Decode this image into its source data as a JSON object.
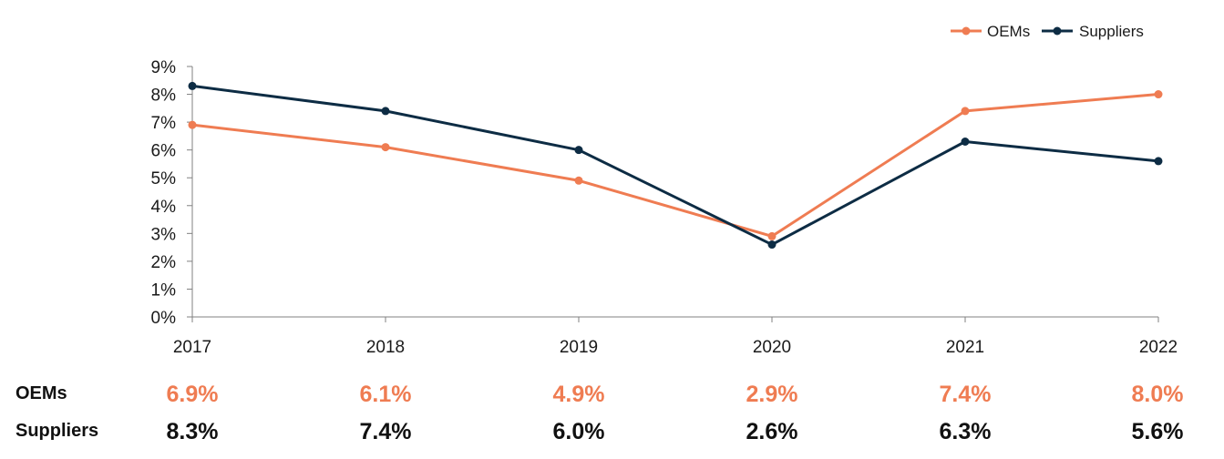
{
  "colors": {
    "oems": "#ef7c52",
    "suppliers": "#0d2c44",
    "axis": "#808080"
  },
  "chart_data": {
    "type": "line",
    "x": [
      "2017",
      "2018",
      "2019",
      "2020",
      "2021",
      "2022"
    ],
    "ylim": [
      0,
      9
    ],
    "yticks": [
      "0%",
      "1%",
      "2%",
      "3%",
      "4%",
      "5%",
      "6%",
      "7%",
      "8%",
      "9%"
    ],
    "legend_position": "top-right",
    "grid": false,
    "series": [
      {
        "name": "OEMs",
        "values": [
          6.9,
          6.1,
          4.9,
          2.9,
          7.4,
          8.0
        ]
      },
      {
        "name": "Suppliers",
        "values": [
          8.3,
          7.4,
          6.0,
          2.6,
          6.3,
          5.6
        ]
      }
    ]
  },
  "table": {
    "rows": [
      {
        "label": "OEMs",
        "values": [
          "6.9%",
          "6.1%",
          "4.9%",
          "2.9%",
          "7.4%",
          "8.0%"
        ]
      },
      {
        "label": "Suppliers",
        "values": [
          "8.3%",
          "7.4%",
          "6.0%",
          "2.6%",
          "6.3%",
          "5.6%"
        ]
      }
    ]
  }
}
